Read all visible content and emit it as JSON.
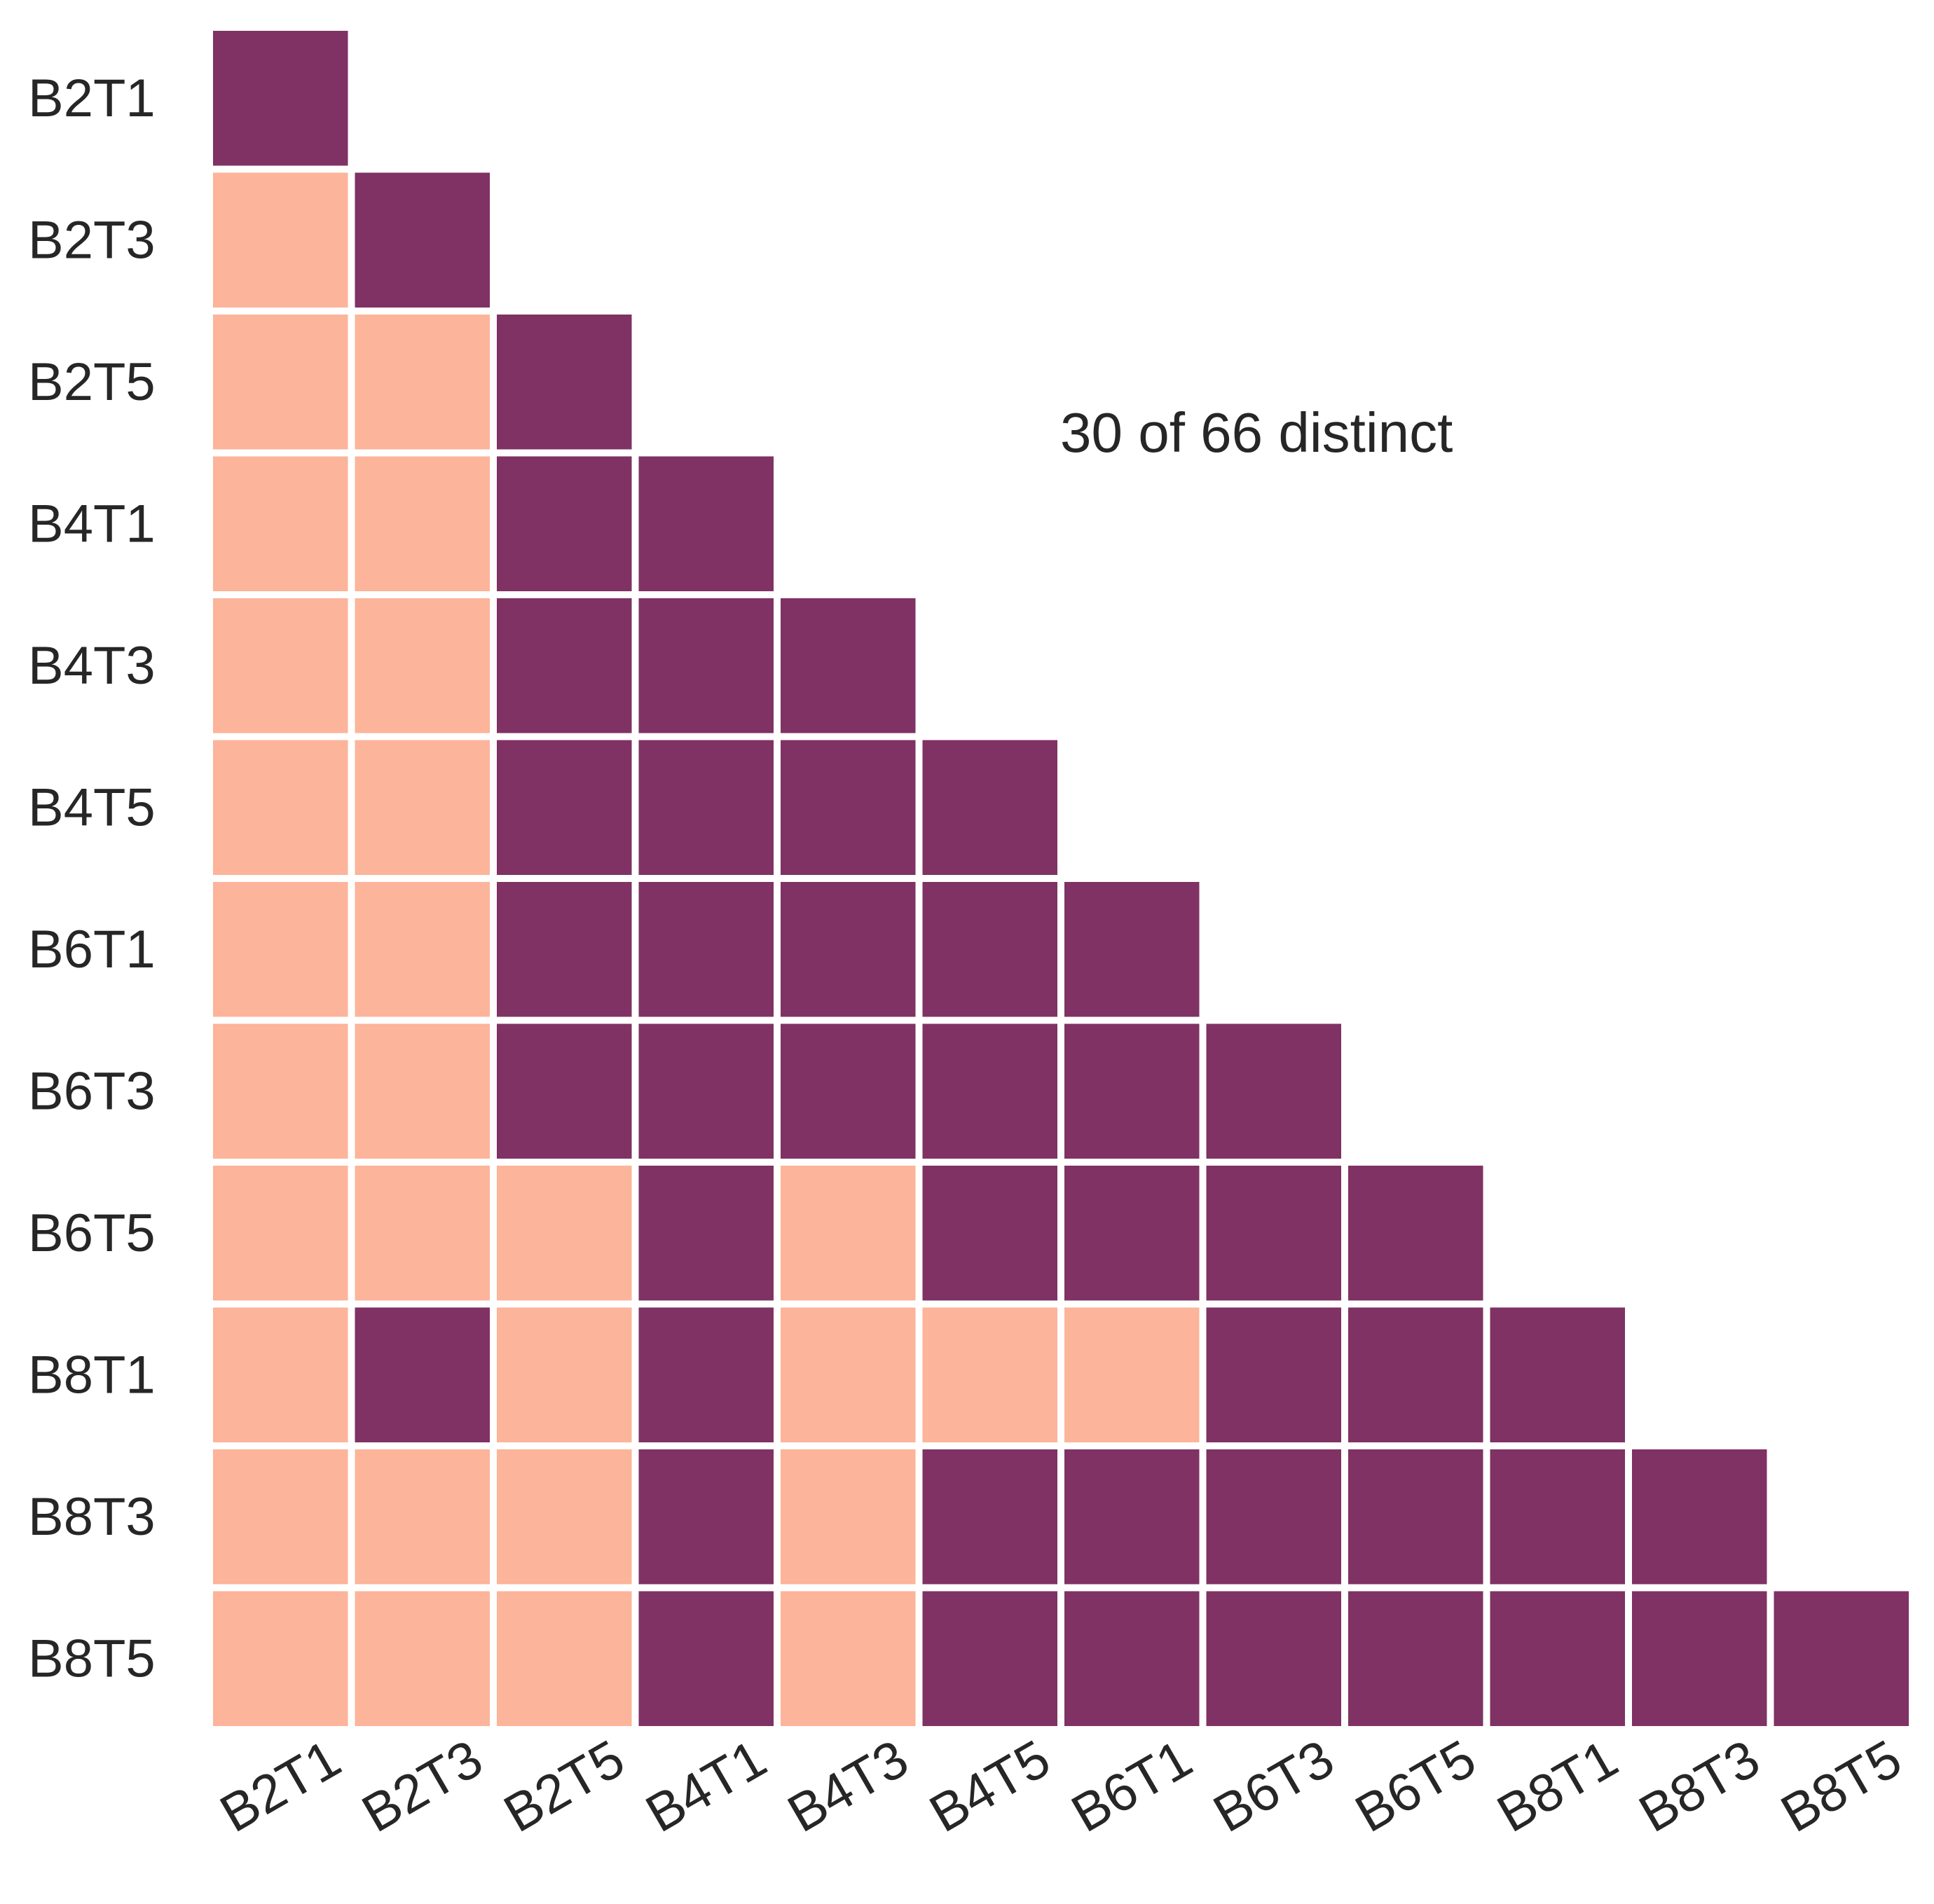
{
  "chart_data": {
    "type": "heatmap",
    "title": "",
    "xlabel": "",
    "ylabel": "",
    "rows": [
      "B2T1",
      "B2T3",
      "B2T5",
      "B4T1",
      "B4T3",
      "B4T5",
      "B6T1",
      "B6T3",
      "B6T5",
      "B8T1",
      "B8T3",
      "B8T5"
    ],
    "columns": [
      "B2T1",
      "B2T3",
      "B2T5",
      "B4T1",
      "B4T3",
      "B4T5",
      "B6T1",
      "B6T3",
      "B6T5",
      "B8T1",
      "B8T3",
      "B8T5"
    ],
    "mask": "upper-triangle",
    "values": [
      [
        0
      ],
      [
        1,
        0
      ],
      [
        1,
        1,
        0
      ],
      [
        1,
        1,
        0,
        0
      ],
      [
        1,
        1,
        0,
        0,
        0
      ],
      [
        1,
        1,
        0,
        0,
        0,
        0
      ],
      [
        1,
        1,
        0,
        0,
        0,
        0,
        0
      ],
      [
        1,
        1,
        0,
        0,
        0,
        0,
        0,
        0
      ],
      [
        1,
        1,
        1,
        0,
        1,
        0,
        0,
        0,
        0
      ],
      [
        1,
        0,
        1,
        0,
        1,
        1,
        1,
        0,
        0,
        0
      ],
      [
        1,
        1,
        1,
        0,
        1,
        0,
        0,
        0,
        0,
        0,
        0
      ],
      [
        1,
        1,
        1,
        0,
        1,
        0,
        0,
        0,
        0,
        0,
        0,
        0
      ]
    ],
    "value_colors": {
      "0": "#7f3263",
      "1": "#fcb49a"
    },
    "cell_gap_color": "#ffffff",
    "annotation": "30 of 66 distinct",
    "grid": false,
    "legend": "none"
  }
}
